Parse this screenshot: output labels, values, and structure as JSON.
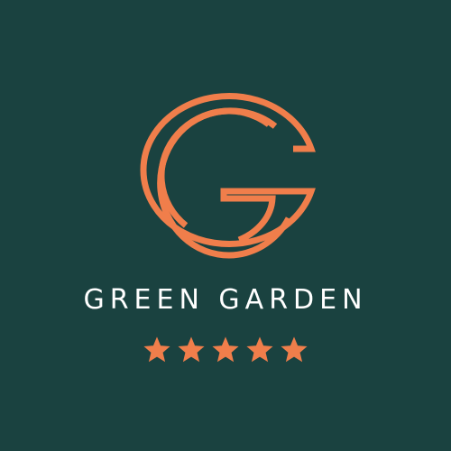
{
  "brand": {
    "name": "GREEN GARDEN",
    "logo_letter": "G",
    "logo_icon": "double-g-monogram-icon"
  },
  "rating": {
    "value": 5,
    "max": 5,
    "icon": "star-icon"
  },
  "colors": {
    "background": "#1a4240",
    "accent": "#f07e4b",
    "text": "#ffffff"
  }
}
